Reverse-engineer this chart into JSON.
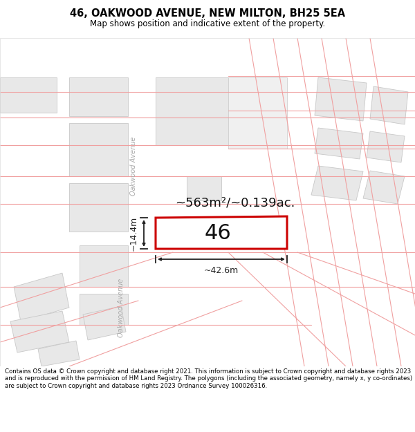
{
  "title": "46, OAKWOOD AVENUE, NEW MILTON, BH25 5EA",
  "subtitle": "Map shows position and indicative extent of the property.",
  "footer": "Contains OS data © Crown copyright and database right 2021. This information is subject to Crown copyright and database rights 2023 and is reproduced with the permission of HM Land Registry. The polygons (including the associated geometry, namely x, y co-ordinates) are subject to Crown copyright and database rights 2023 Ordnance Survey 100026316.",
  "area_label": "~563m²/~0.139ac.",
  "width_label": "~42.6m",
  "height_label": "~14.4m",
  "number_label": "46",
  "bg_color": "#ffffff",
  "map_bg": "#f7f7f7",
  "road_color": "#ffffff",
  "building_fill": "#e8e8e8",
  "building_outline": "#c8c8c8",
  "pink_line_color": "#f0a0a0",
  "subject_fill": "#ffffff",
  "subject_outline": "#cc0000",
  "road_label_color": "#aaaaaa",
  "dimension_color": "#222222",
  "title_fontsize": 10.5,
  "subtitle_fontsize": 8.5,
  "footer_fontsize": 6.2
}
